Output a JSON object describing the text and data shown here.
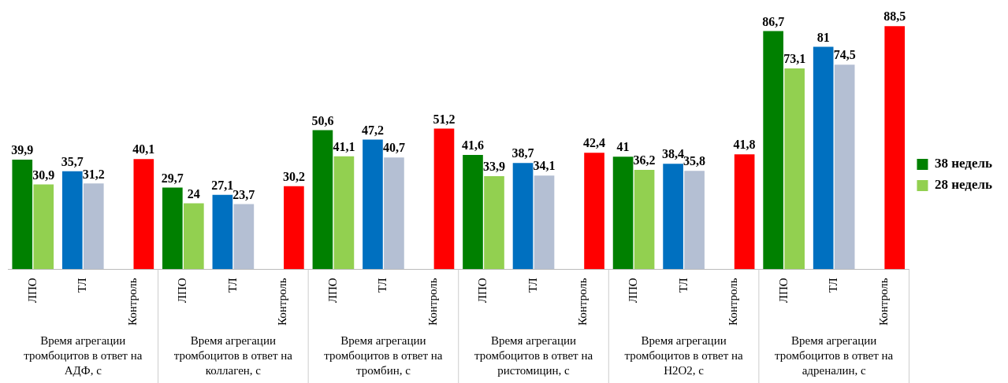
{
  "chart_data": {
    "type": "bar",
    "categories": [
      "ЛПО",
      "ТЛ",
      "Контроль",
      "ЛПО",
      "ТЛ",
      "Контроль",
      "ЛПО",
      "ТЛ",
      "Контроль",
      "ЛПО",
      "ТЛ",
      "Контроль",
      "ЛПО",
      "ТЛ",
      "Контроль",
      "ЛПО",
      "ТЛ",
      "Контроль"
    ],
    "series": [
      {
        "name": "38 недель",
        "color": "#008000",
        "colors": [
          "#008000",
          "#0070c0",
          null,
          "#008000",
          "#0070c0",
          null,
          "#008000",
          "#0070c0",
          null,
          "#008000",
          "#0070c0",
          null,
          "#008000",
          "#0070c0",
          null,
          "#008000",
          "#0070c0",
          null
        ],
        "values": [
          39.9,
          35.7,
          null,
          29.7,
          27.1,
          null,
          50.6,
          47.2,
          null,
          41.6,
          38.7,
          null,
          41,
          38.4,
          null,
          86.7,
          81,
          null
        ],
        "value_labels": [
          "39,9",
          "35,7",
          null,
          "29,7",
          "27,1",
          null,
          "50,6",
          "47,2",
          null,
          "41,6",
          "38,7",
          null,
          "41",
          "38,4",
          null,
          "86,7",
          "81",
          null
        ]
      },
      {
        "name": "28 недель",
        "color": "#92d050",
        "colors": [
          "#92d050",
          "#b4bfd3",
          "#ff0000",
          "#92d050",
          "#b4bfd3",
          "#ff0000",
          "#92d050",
          "#b4bfd3",
          "#ff0000",
          "#92d050",
          "#b4bfd3",
          "#ff0000",
          "#92d050",
          "#b4bfd3",
          "#ff0000",
          "#92d050",
          "#b4bfd3",
          "#ff0000"
        ],
        "values": [
          30.9,
          31.2,
          40.1,
          24,
          23.7,
          30.2,
          41.1,
          40.7,
          51.2,
          33.9,
          34.1,
          42.4,
          36.2,
          35.8,
          41.8,
          73.1,
          74.5,
          88.5
        ],
        "value_labels": [
          "30,9",
          "31,2",
          "40,1",
          "24",
          "23,7",
          "30,2",
          "41,1",
          "40,7",
          "51,2",
          "33,9",
          "34,1",
          "42,4",
          "36,2",
          "35,8",
          "41,8",
          "73,1",
          "74,5",
          "88,5"
        ]
      }
    ],
    "annotations": [
      "Время агрегации тромбоцитов в ответ на АДФ, с",
      "Время агрегации тромбоцитов в ответ на коллаген, с",
      "Время агрегации тромбоцитов в ответ на тромбин, с",
      "Время агрегации тромбоцитов в ответ на ристомицин, с",
      "Время агрегации тромбоцитов в ответ на Н2О2, с",
      "Время агрегации тромбоцитов в ответ на адреналин, с"
    ],
    "legend": "right",
    "tick_labels": "x",
    "grid": false
  }
}
